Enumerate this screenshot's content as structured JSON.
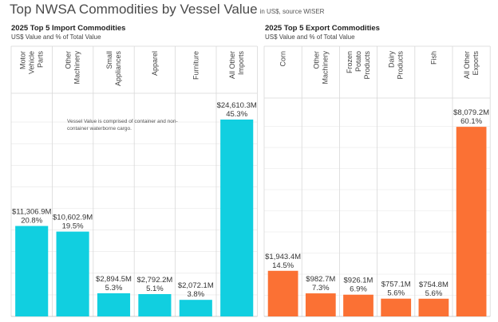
{
  "header": {
    "title": "Top NWSA Commodities by Vessel Value",
    "subtitle": "in US$, source WISER"
  },
  "colors": {
    "import_bar": "#11cfe0",
    "export_bar": "#fb7134",
    "divider": "#d8d8d8",
    "grid": "#e6e6e6"
  },
  "chart_data": [
    {
      "type": "bar",
      "title": "2025 Top 5 Import Commodities",
      "subtitle": "US$ Value and % of Total Value",
      "note": "Vessel Value is comprised of container and non-container waterborne cargo.",
      "categories": [
        "Motor Vehicle Parts",
        "Other Machinery",
        "Small Appliances",
        "Apparel",
        "Furniture",
        "All Other Imports"
      ],
      "category_lines": [
        [
          "Motor",
          "Vehicle",
          "Parts"
        ],
        [
          "Other",
          "Machinery"
        ],
        [
          "Small",
          "Appliances"
        ],
        [
          "Apparel"
        ],
        [
          "Furniture"
        ],
        [
          "All Other",
          "Imports"
        ]
      ],
      "values": [
        11306.9,
        10602.9,
        2894.5,
        2792.2,
        2072.1,
        24610.3
      ],
      "value_labels": [
        "$11,306.9M",
        "$10,602.9M",
        "$2,894.5M",
        "$2,792.2M",
        "$2,072.1M",
        "$24,610.3M"
      ],
      "percent_labels": [
        "20.8%",
        "19.5%",
        "5.3%",
        "5.1%",
        "3.8%",
        "45.3%"
      ],
      "ylim": [
        0,
        27000
      ],
      "grid": true
    },
    {
      "type": "bar",
      "title": "2025 Top 5 Export Commodities",
      "subtitle": "US$ Value and % of Total Value",
      "categories": [
        "Corn",
        "Other Machinery",
        "Frozen Potato Products",
        "Dairy Products",
        "Fish",
        "All Other Exports"
      ],
      "category_lines": [
        [
          "Corn"
        ],
        [
          "Other",
          "Machinery"
        ],
        [
          "Frozen",
          "Potato",
          "Products"
        ],
        [
          "Dairy",
          "Products"
        ],
        [
          "Fish"
        ],
        [
          "All Other",
          "Exports"
        ]
      ],
      "values": [
        1943.4,
        982.7,
        926.1,
        757.1,
        754.8,
        8079.2
      ],
      "value_labels": [
        "$1,943.4M",
        "$982.7M",
        "$926.1M",
        "$757.1M",
        "$754.8M",
        "$8,079.2M"
      ],
      "percent_labels": [
        "14.5%",
        "7.3%",
        "6.9%",
        "5.6%",
        "5.6%",
        "60.1%"
      ],
      "ylim": [
        0,
        9000
      ],
      "grid": true
    }
  ]
}
